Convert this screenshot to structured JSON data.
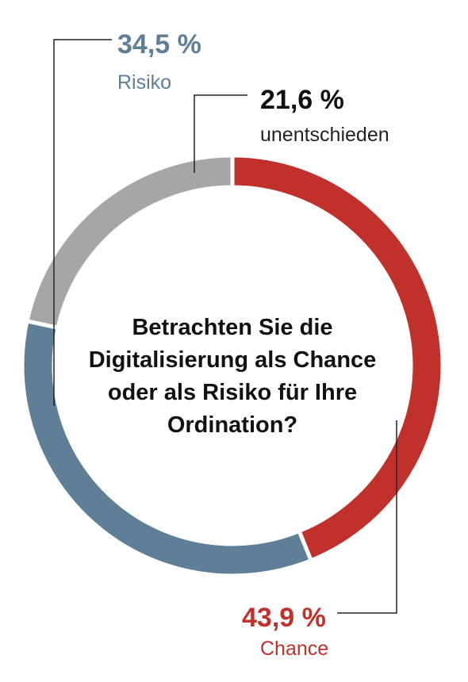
{
  "chart_data": {
    "type": "pie",
    "title": "Betrachten Sie die Digitalisierung als Chance oder als Risiko für Ihre Ordination?",
    "title_lines": [
      "Betrachten Sie die",
      "Digitalisierung als Chance",
      "oder als Risiko für Ihre",
      "Ordination?"
    ],
    "slices": [
      {
        "label": "Chance",
        "value": 43.9,
        "value_label": "43,9 %",
        "color": "#c0312b"
      },
      {
        "label": "Risiko",
        "value": 34.5,
        "value_label": "34,5 %",
        "color": "#5e7f96"
      },
      {
        "label": "unentschieden",
        "value": 21.6,
        "value_label": "21,6 %",
        "color": "#a6a6a6"
      }
    ],
    "legend": "none"
  }
}
